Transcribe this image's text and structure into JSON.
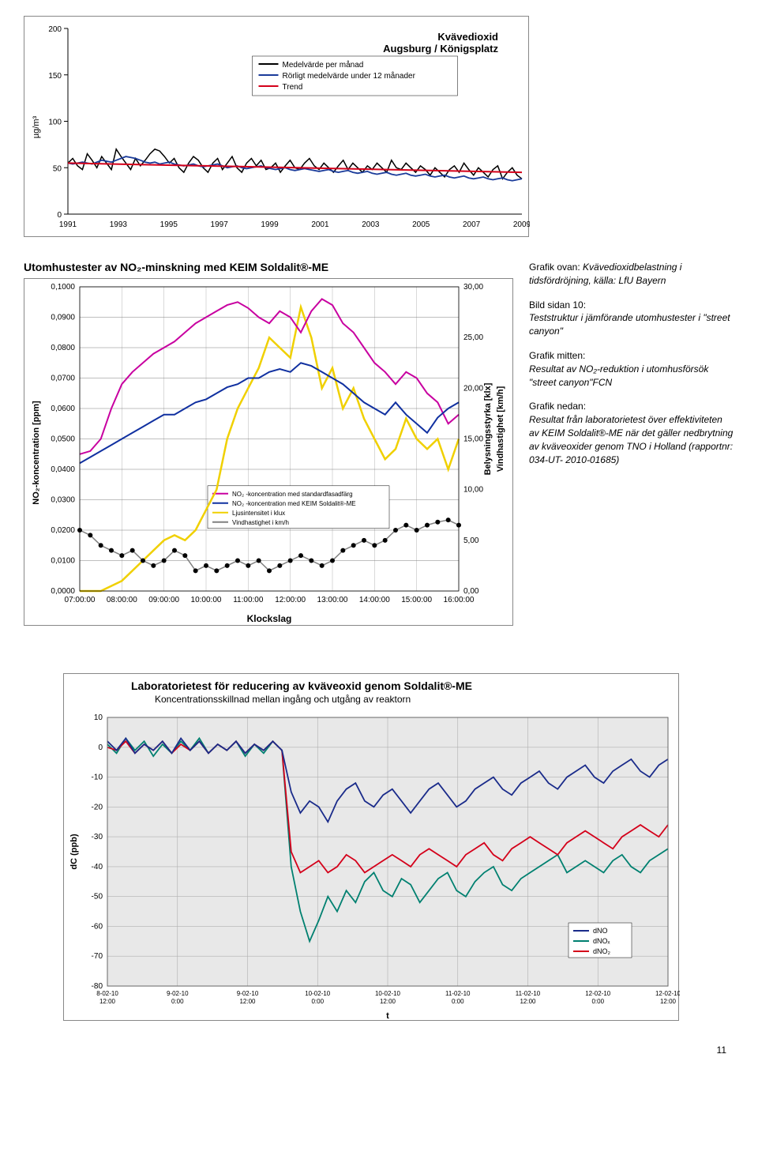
{
  "chart1": {
    "title_line1": "Kvävedioxid",
    "title_line2": "Augsburg / Königsplatz",
    "ylabel": "µg/m³",
    "x_ticks": [
      "1991",
      "1993",
      "1995",
      "1997",
      "1999",
      "2001",
      "2003",
      "2005",
      "2007",
      "2009"
    ],
    "y_ticks": [
      0,
      50,
      100,
      150,
      200
    ],
    "ylim": [
      0,
      200
    ],
    "legend": [
      "Medelvärde per månad",
      "Rörligt medelvärde under 12 månader",
      "Trend"
    ],
    "legend_colors": [
      "#000000",
      "#1a3b9a",
      "#d4001a"
    ],
    "line_black_y": [
      55,
      60,
      52,
      48,
      65,
      58,
      50,
      62,
      55,
      48,
      70,
      62,
      55,
      48,
      60,
      52,
      58,
      65,
      70,
      68,
      62,
      55,
      60,
      50,
      45,
      55,
      62,
      58,
      50,
      45,
      55,
      60,
      48,
      55,
      62,
      50,
      45,
      55,
      60,
      52,
      58,
      48,
      50,
      55,
      45,
      52,
      58,
      50,
      48,
      55,
      60,
      52,
      48,
      55,
      50,
      45,
      52,
      58,
      48,
      55,
      50,
      45,
      52,
      48,
      55,
      50,
      45,
      58,
      50,
      48,
      55,
      50,
      45,
      52,
      48,
      42,
      50,
      45,
      40,
      48,
      52,
      45,
      55,
      48,
      42,
      50,
      45,
      40,
      48,
      52,
      38,
      45,
      50,
      42,
      38
    ],
    "line_blue_y": [
      55,
      54,
      55,
      56,
      55,
      54,
      56,
      58,
      57,
      56,
      58,
      60,
      62,
      61,
      60,
      58,
      56,
      55,
      56,
      54,
      55,
      56,
      54,
      53,
      52,
      53,
      54,
      52,
      51,
      52,
      53,
      54,
      52,
      50,
      51,
      52,
      50,
      49,
      50,
      51,
      52,
      50,
      49,
      48,
      49,
      50,
      48,
      47,
      48,
      49,
      48,
      47,
      46,
      47,
      48,
      46,
      45,
      46,
      47,
      45,
      44,
      45,
      46,
      44,
      43,
      44,
      45,
      43,
      42,
      43,
      44,
      42,
      41,
      42,
      43,
      41,
      40,
      41,
      42,
      40,
      39,
      40,
      41,
      39,
      38,
      39,
      40,
      38,
      37,
      38,
      39,
      37,
      36,
      37,
      38
    ],
    "trend_start": 55,
    "trend_end": 45,
    "background": "#ffffff",
    "border_color": "#888888"
  },
  "chart2": {
    "title": "Utomhustester av NO₂-minskning med KEIM Soldalit®-ME",
    "ylabel_left": "NO₂-koncentration [ppm]",
    "ylabel_right1": "Belysningsstyrka [klx]",
    "ylabel_right2": "Vindhastighet [km/h]",
    "xlabel": "Klockslag",
    "x_ticks": [
      "07:00:00",
      "08:00:00",
      "09:00:00",
      "10:00:00",
      "11:00:00",
      "12:00:00",
      "13:00:00",
      "14:00:00",
      "15:00:00",
      "16:00:00"
    ],
    "y_left_ticks": [
      "0,0000",
      "0,0100",
      "0,0200",
      "0,0300",
      "0,0400",
      "0,0500",
      "0,0600",
      "0,0700",
      "0,0800",
      "0,0900",
      "0,1000"
    ],
    "y_right_ticks": [
      "0,00",
      "5,00",
      "10,00",
      "15,00",
      "20,00",
      "25,00",
      "30,00"
    ],
    "ylim_left": [
      0,
      0.1
    ],
    "ylim_right": [
      0,
      30
    ],
    "legend": [
      "NO₂ -koncentration med standardfasadfärg",
      "NO₂ -koncentration med KEIM Soldalit®-ME",
      "Ljusintensitet i klux",
      "Vindhastighet i km/h"
    ],
    "legend_colors": [
      "#c800a0",
      "#1030a0",
      "#f0d000",
      "#808080"
    ],
    "grid_color": "#808080",
    "magenta_y": [
      0.045,
      0.046,
      0.05,
      0.06,
      0.068,
      0.072,
      0.075,
      0.078,
      0.08,
      0.082,
      0.085,
      0.088,
      0.09,
      0.092,
      0.094,
      0.095,
      0.093,
      0.09,
      0.088,
      0.092,
      0.09,
      0.085,
      0.092,
      0.096,
      0.094,
      0.088,
      0.085,
      0.08,
      0.075,
      0.072,
      0.068,
      0.072,
      0.07,
      0.065,
      0.062,
      0.055,
      0.058
    ],
    "blue_y": [
      0.042,
      0.044,
      0.046,
      0.048,
      0.05,
      0.052,
      0.054,
      0.056,
      0.058,
      0.058,
      0.06,
      0.062,
      0.063,
      0.065,
      0.067,
      0.068,
      0.07,
      0.07,
      0.072,
      0.073,
      0.072,
      0.075,
      0.074,
      0.072,
      0.07,
      0.068,
      0.065,
      0.062,
      0.06,
      0.058,
      0.062,
      0.058,
      0.055,
      0.052,
      0.057,
      0.06,
      0.062
    ],
    "yellow_y": [
      0,
      0,
      0,
      0.5,
      1,
      2,
      3,
      4,
      5,
      5.5,
      5,
      6,
      8,
      10,
      15,
      18,
      20,
      22,
      25,
      24,
      23,
      28,
      25,
      20,
      22,
      18,
      20,
      17,
      15,
      13,
      14,
      17,
      15,
      14,
      15,
      12,
      15
    ],
    "grey_y": [
      6,
      5.5,
      4.5,
      4,
      3.5,
      4,
      3,
      2.5,
      3,
      4,
      3.5,
      2,
      2.5,
      2,
      2.5,
      3,
      2.5,
      3,
      2,
      2.5,
      3,
      3.5,
      3,
      2.5,
      3,
      4,
      4.5,
      5,
      4.5,
      5,
      6,
      6.5,
      6,
      6.5,
      6.8,
      7,
      6.5
    ]
  },
  "sidetext": {
    "p1_hdr": "Grafik ovan:",
    "p1": " Kvävedioxidbelastning i tidsfördröjning, källa: LfU Bayern",
    "p2_hdr": "Bild sidan 10:",
    "p2": "Teststruktur i jämförande utomhustester i \"street canyon\"",
    "p3_hdr": "Grafik mitten:",
    "p3": "Resultat av NO₂-reduktion i utomhusförsök \"street canyon\"FCN",
    "p4_hdr": "Grafik nedan:",
    "p4": "Resultat från laboratorietest över effektiviteten av KEIM Soldalit®-ME när det gäller nedbrytning av kväveoxider genom TNO i Holland (rapportnr: 034-UT- 2010-01685)"
  },
  "chart3": {
    "title_line1": "Laboratorietest för reducering av kväveoxid genom Soldalit®-ME",
    "title_line2": "Koncentrationsskillnad mellan ingång och utgång av reaktorn",
    "ylabel": "dC (ppb)",
    "xlabel": "t",
    "x_ticks": [
      "8-02-10 12:00",
      "9-02-10 0:00",
      "9-02-10 12:00",
      "10-02-10 0:00",
      "10-02-10 12:00",
      "11-02-10 0:00",
      "11-02-10 12:00",
      "12-02-10 0:00",
      "12-02-10 12:00"
    ],
    "y_ticks": [
      -80,
      -70,
      -60,
      -50,
      -40,
      -30,
      -20,
      -10,
      0,
      10
    ],
    "ylim": [
      -80,
      10
    ],
    "legend": [
      "dNO",
      "dNOₓ",
      "dNO₂"
    ],
    "legend_colors": [
      "#1a2b8a",
      "#008070",
      "#d4001a"
    ],
    "grid_color": "#b0b0b0",
    "plot_bg": "#e8e8e8",
    "teal_y": [
      1,
      -2,
      3,
      -1,
      2,
      -3,
      1,
      -2,
      2,
      -1,
      3,
      -2,
      1,
      -1,
      2,
      -3,
      1,
      -2,
      2,
      -1,
      -40,
      -55,
      -65,
      -58,
      -50,
      -55,
      -48,
      -52,
      -45,
      -42,
      -48,
      -50,
      -44,
      -46,
      -52,
      -48,
      -44,
      -42,
      -48,
      -50,
      -45,
      -42,
      -40,
      -46,
      -48,
      -44,
      -42,
      -40,
      -38,
      -36,
      -42,
      -40,
      -38,
      -40,
      -42,
      -38,
      -36,
      -40,
      -42,
      -38,
      -36,
      -34
    ],
    "red_y": [
      0,
      -1,
      2,
      -2,
      1,
      -1,
      2,
      -2,
      1,
      -1,
      2,
      -2,
      1,
      -1,
      2,
      -2,
      1,
      -1,
      2,
      -1,
      -35,
      -42,
      -40,
      -38,
      -42,
      -40,
      -36,
      -38,
      -42,
      -40,
      -38,
      -36,
      -38,
      -40,
      -36,
      -34,
      -36,
      -38,
      -40,
      -36,
      -34,
      -32,
      -36,
      -38,
      -34,
      -32,
      -30,
      -32,
      -34,
      -36,
      -32,
      -30,
      -28,
      -30,
      -32,
      -34,
      -30,
      -28,
      -26,
      -28,
      -30,
      -26
    ],
    "blue_y": [
      2,
      -1,
      3,
      -2,
      1,
      -1,
      2,
      -2,
      3,
      -1,
      2,
      -2,
      1,
      -1,
      2,
      -2,
      1,
      -1,
      2,
      -1,
      -15,
      -22,
      -18,
      -20,
      -25,
      -18,
      -14,
      -12,
      -18,
      -20,
      -16,
      -14,
      -18,
      -22,
      -18,
      -14,
      -12,
      -16,
      -20,
      -18,
      -14,
      -12,
      -10,
      -14,
      -16,
      -12,
      -10,
      -8,
      -12,
      -14,
      -10,
      -8,
      -6,
      -10,
      -12,
      -8,
      -6,
      -4,
      -8,
      -10,
      -6,
      -4
    ]
  },
  "page_number": "11"
}
